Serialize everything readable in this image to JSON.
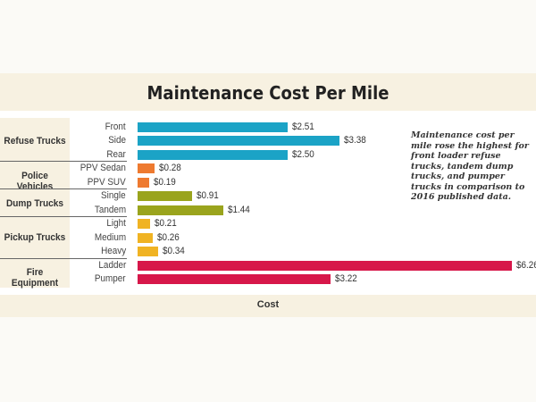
{
  "chart_data": {
    "type": "bar",
    "orientation": "horizontal",
    "title": "Maintenance Cost Per Mile",
    "xlabel": "Cost",
    "ylabel": "",
    "annotation": "Maintenance cost per mile rose the highest for front loader refuse trucks, tandem dump trucks, and pumper trucks in comparison to 2016 published data.",
    "groups": [
      {
        "name": "Refuse Trucks",
        "color": "#1ba3c6",
        "items": [
          {
            "label": "Front",
            "value": 2.51,
            "text": "$2.51"
          },
          {
            "label": "Side",
            "value": 3.38,
            "text": "$3.38"
          },
          {
            "label": "Rear",
            "value": 2.5,
            "text": "$2.50"
          }
        ]
      },
      {
        "name": "Police Vehicles",
        "color": "#ee7a30",
        "items": [
          {
            "label": "PPV Sedan",
            "value": 0.28,
            "text": "$0.28"
          },
          {
            "label": "PPV SUV",
            "value": 0.19,
            "text": "$0.19"
          }
        ]
      },
      {
        "name": "Dump Trucks",
        "color": "#9aa41d",
        "items": [
          {
            "label": "Single",
            "value": 0.91,
            "text": "$0.91"
          },
          {
            "label": "Tandem",
            "value": 1.44,
            "text": "$1.44"
          }
        ]
      },
      {
        "name": "Pickup Trucks",
        "color": "#f0b323",
        "items": [
          {
            "label": "Light",
            "value": 0.21,
            "text": "$0.21"
          },
          {
            "label": "Medium",
            "value": 0.26,
            "text": "$0.26"
          },
          {
            "label": "Heavy",
            "value": 0.34,
            "text": "$0.34"
          }
        ]
      },
      {
        "name": "Fire Equipment",
        "color": "#d7174a",
        "items": [
          {
            "label": "Ladder",
            "value": 6.26,
            "text": "$6.26"
          },
          {
            "label": "Pumper",
            "value": 3.22,
            "text": "$3.22"
          }
        ]
      }
    ]
  }
}
